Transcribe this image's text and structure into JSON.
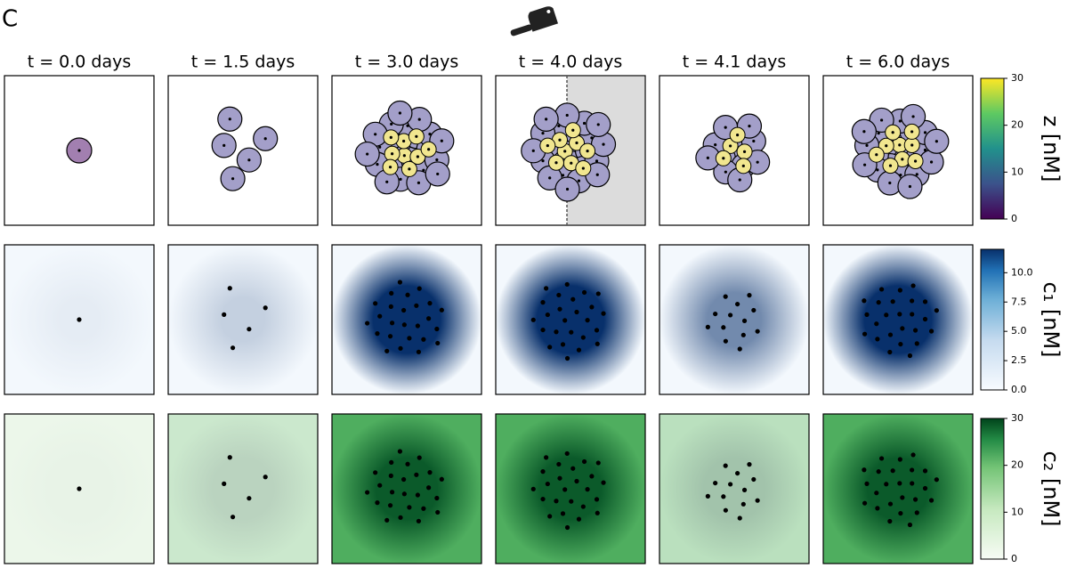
{
  "panel_label": "C",
  "columns": [
    "t = 0.0 days",
    "t = 1.5 days",
    "t = 3.0 days",
    "t = 4.0 days",
    "t = 4.1 days",
    "t = 6.0 days"
  ],
  "colorbars": [
    {
      "label": "z [nM]",
      "lim": [
        0,
        30
      ],
      "ticks": [
        0,
        10,
        20,
        30
      ]
    },
    {
      "label": "c₁ [nM]",
      "lim": [
        0,
        12
      ],
      "ticks": [
        {
          "value": 0,
          "label": "0.0"
        },
        {
          "value": 2.5,
          "label": "2.5"
        },
        {
          "value": 5,
          "label": "5.0"
        },
        {
          "value": 7.5,
          "label": "7.5"
        },
        {
          "value": 10,
          "label": "10.0"
        }
      ]
    },
    {
      "label": "c₂ [nM]",
      "lim": [
        0,
        30
      ],
      "ticks": [
        0,
        10,
        20,
        30
      ]
    }
  ]
}
